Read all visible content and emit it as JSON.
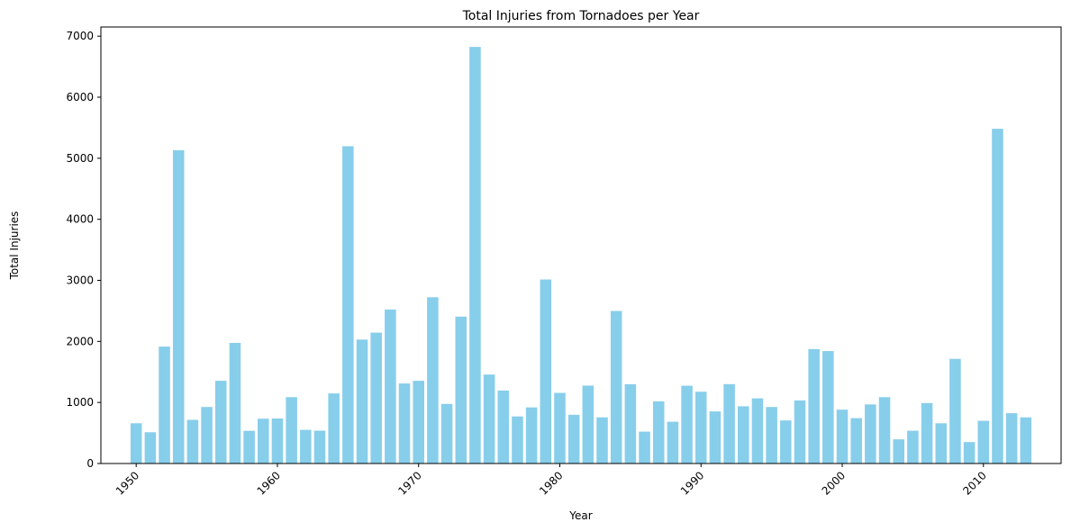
{
  "chart_data": {
    "type": "bar",
    "title": "Total Injuries from Tornadoes per Year",
    "xlabel": "Year",
    "ylabel": "Total Injuries",
    "bar_color": "#87ceeb",
    "grid": false,
    "legend": "none",
    "xlim": [
      1947.5,
      2015.5
    ],
    "ylim": [
      0,
      7150
    ],
    "x_ticks": [
      1950,
      1960,
      1970,
      1980,
      1990,
      2000,
      2010
    ],
    "y_ticks": [
      0,
      1000,
      2000,
      3000,
      4000,
      5000,
      6000,
      7000
    ],
    "categories": [
      1950,
      1951,
      1952,
      1953,
      1954,
      1955,
      1956,
      1957,
      1958,
      1959,
      1960,
      1961,
      1962,
      1963,
      1964,
      1965,
      1966,
      1967,
      1968,
      1969,
      1970,
      1971,
      1972,
      1973,
      1974,
      1975,
      1976,
      1977,
      1978,
      1979,
      1980,
      1981,
      1982,
      1983,
      1984,
      1985,
      1986,
      1987,
      1988,
      1989,
      1990,
      1991,
      1992,
      1993,
      1994,
      1995,
      1996,
      1997,
      1998,
      1999,
      2000,
      2001,
      2002,
      2003,
      2004,
      2005,
      2006,
      2007,
      2008,
      2009,
      2010,
      2011,
      2012,
      2013
    ],
    "values": [
      659,
      512,
      1915,
      5131,
      715,
      926,
      1355,
      1976,
      535,
      734,
      737,
      1087,
      551,
      538,
      1148,
      5197,
      2030,
      2144,
      2522,
      1311,
      1355,
      2723,
      976,
      2406,
      6824,
      1457,
      1195,
      771,
      919,
      3014,
      1157,
      798,
      1276,
      756,
      2499,
      1299,
      522,
      1018,
      684,
      1274,
      1176,
      853,
      1300,
      937,
      1067,
      926,
      705,
      1033,
      1874,
      1842,
      882,
      743,
      968,
      1087,
      396,
      537,
      990,
      659,
      1714,
      351,
      699,
      5483,
      824,
      756
    ]
  }
}
